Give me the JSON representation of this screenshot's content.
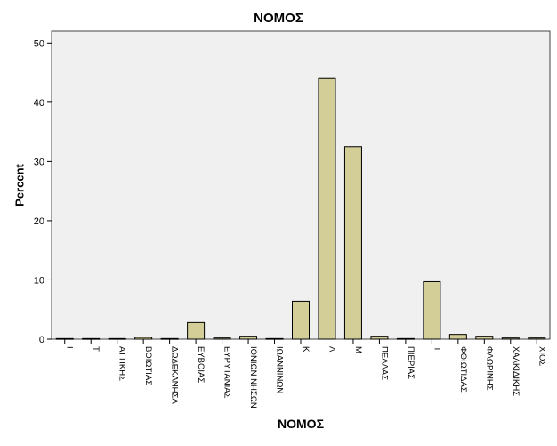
{
  "chart_data": {
    "type": "bar",
    "title": "ΝΟΜΟΣ",
    "xlabel": "ΝΟΜΟΣ",
    "ylabel": "Percent",
    "ylim": [
      0,
      52
    ],
    "yticks": [
      0,
      10,
      20,
      30,
      40,
      50
    ],
    "grid": false,
    "legend": "none",
    "categories": [
      "Ι",
      "Τ",
      "ΑΤΤΙΚΗΣ",
      "ΒΟΙΩΤΙΑΣ",
      "ΔΩΔΕΚΑΝΗΣΑ",
      "ΕΥΒΟΙΑΣ",
      "ΕΥΡΥΤΑΝΙΑΣ",
      "ΙΟΝΙΩΝ ΝΗΣΩΝ",
      "ΙΩΑΝΝΙΝΩΝ",
      "Κ",
      "Λ",
      "Μ",
      "ΠΕΛΛΑΣ",
      "ΠΙΕΡΙΑΣ",
      "Τ",
      "ΦΘΙΩΤΙΔΑΣ",
      "ΦΛΩΡΙΝΗΣ",
      "ΧΑΛΚΙΔΙΚΗΣ",
      "ΧΙΟΣ"
    ],
    "values": [
      0.1,
      0.1,
      0.1,
      0.3,
      0.1,
      2.8,
      0.2,
      0.5,
      0.1,
      6.4,
      44.0,
      32.5,
      0.5,
      0.1,
      9.7,
      0.8,
      0.5,
      0.2,
      0.2
    ],
    "colors": {
      "bar_fill": "#d3ce98",
      "bar_stroke": "#000000",
      "plot_background": "#f0f0f0",
      "plot_border": "#444444"
    }
  }
}
